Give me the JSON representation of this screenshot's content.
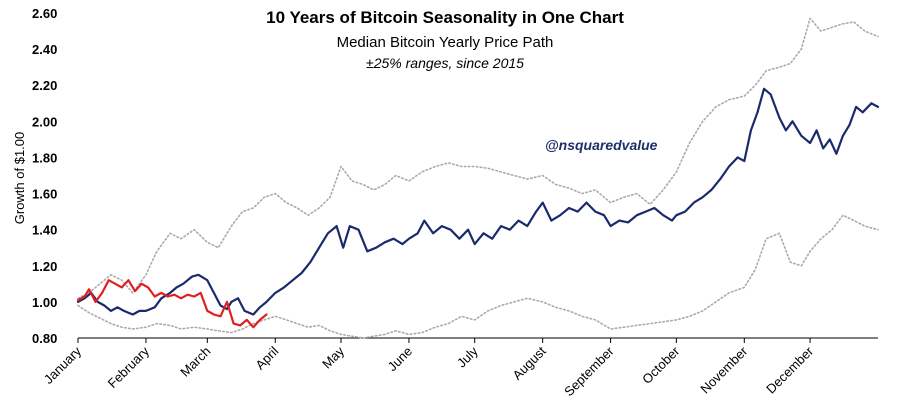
{
  "chart_data": {
    "type": "line",
    "title": "10 Years of Bitcoin Seasonality in One Chart",
    "subtitle": "Median Bitcoin Yearly Price Path",
    "subtitle2": "±25% ranges, since 2015",
    "xlabel": "",
    "ylabel": "Growth of $1.00",
    "annotation": "@nsquaredvalue",
    "xlim": [
      0,
      365
    ],
    "ylim": [
      0.8,
      2.6
    ],
    "x_ticks": [
      {
        "label": "January",
        "x": 0
      },
      {
        "label": "February",
        "x": 31
      },
      {
        "label": "March",
        "x": 59
      },
      {
        "label": "April",
        "x": 90
      },
      {
        "label": "May",
        "x": 120
      },
      {
        "label": "June",
        "x": 151
      },
      {
        "label": "July",
        "x": 181
      },
      {
        "label": "August",
        "x": 212
      },
      {
        "label": "September",
        "x": 243
      },
      {
        "label": "October",
        "x": 273
      },
      {
        "label": "November",
        "x": 304
      },
      {
        "label": "December",
        "x": 334
      }
    ],
    "y_ticks": [
      "0.80",
      "1.00",
      "1.20",
      "1.40",
      "1.60",
      "1.80",
      "2.00",
      "2.20",
      "2.40",
      "2.60"
    ],
    "grid": false,
    "series": [
      {
        "color": "#aaaaaa",
        "style": "dotted",
        "x": [
          0,
          5,
          10,
          15,
          20,
          25,
          31,
          36,
          42,
          47,
          53,
          59,
          64,
          70,
          75,
          80,
          85,
          90,
          95,
          100,
          105,
          110,
          115,
          120,
          125,
          130,
          135,
          140,
          145,
          151,
          157,
          163,
          169,
          175,
          181,
          187,
          193,
          199,
          205,
          212,
          218,
          224,
          230,
          236,
          243,
          249,
          255,
          261,
          267,
          273,
          279,
          285,
          291,
          297,
          304,
          309,
          314,
          320,
          325,
          330,
          334,
          339,
          344,
          349,
          354,
          359,
          365
        ],
        "values": [
          1.02,
          1.05,
          1.1,
          1.15,
          1.12,
          1.05,
          1.15,
          1.28,
          1.38,
          1.35,
          1.4,
          1.33,
          1.3,
          1.42,
          1.5,
          1.52,
          1.58,
          1.6,
          1.55,
          1.52,
          1.48,
          1.52,
          1.58,
          1.75,
          1.67,
          1.65,
          1.62,
          1.65,
          1.7,
          1.67,
          1.72,
          1.75,
          1.77,
          1.75,
          1.75,
          1.74,
          1.72,
          1.7,
          1.68,
          1.7,
          1.65,
          1.63,
          1.6,
          1.62,
          1.55,
          1.58,
          1.6,
          1.54,
          1.62,
          1.72,
          1.88,
          2.0,
          2.08,
          2.12,
          2.14,
          2.2,
          2.28,
          2.3,
          2.32,
          2.4,
          2.57,
          2.5,
          2.52,
          2.54,
          2.55,
          2.5,
          2.47
        ]
      },
      {
        "color": "#aaaaaa",
        "style": "dotted",
        "x": [
          0,
          5,
          10,
          15,
          20,
          25,
          31,
          36,
          42,
          47,
          53,
          59,
          64,
          70,
          75,
          80,
          85,
          90,
          95,
          100,
          105,
          110,
          115,
          120,
          125,
          130,
          135,
          140,
          145,
          151,
          157,
          163,
          169,
          175,
          181,
          187,
          193,
          199,
          205,
          212,
          218,
          224,
          230,
          236,
          243,
          249,
          255,
          261,
          267,
          273,
          279,
          285,
          291,
          297,
          304,
          309,
          314,
          320,
          325,
          330,
          334,
          339,
          344,
          349,
          354,
          359,
          365
        ],
        "values": [
          0.98,
          0.94,
          0.91,
          0.88,
          0.86,
          0.85,
          0.86,
          0.88,
          0.87,
          0.85,
          0.86,
          0.85,
          0.84,
          0.83,
          0.85,
          0.88,
          0.9,
          0.92,
          0.9,
          0.88,
          0.86,
          0.87,
          0.84,
          0.82,
          0.81,
          0.8,
          0.81,
          0.82,
          0.84,
          0.82,
          0.83,
          0.86,
          0.88,
          0.92,
          0.9,
          0.95,
          0.98,
          1.0,
          1.02,
          1.0,
          0.97,
          0.95,
          0.92,
          0.9,
          0.85,
          0.86,
          0.87,
          0.88,
          0.89,
          0.9,
          0.92,
          0.95,
          1.0,
          1.05,
          1.08,
          1.18,
          1.35,
          1.38,
          1.22,
          1.2,
          1.28,
          1.35,
          1.4,
          1.48,
          1.45,
          1.42,
          1.4
        ]
      },
      {
        "color": "#1a2a6c",
        "style": "solid",
        "x": [
          0,
          3,
          6,
          9,
          12,
          15,
          18,
          21,
          25,
          28,
          31,
          35,
          38,
          42,
          45,
          48,
          52,
          55,
          59,
          62,
          65,
          68,
          70,
          73,
          76,
          80,
          83,
          86,
          90,
          94,
          98,
          102,
          106,
          110,
          114,
          118,
          121,
          124,
          128,
          132,
          136,
          140,
          144,
          148,
          151,
          155,
          158,
          162,
          166,
          170,
          174,
          178,
          181,
          185,
          189,
          193,
          197,
          201,
          205,
          209,
          212,
          216,
          220,
          224,
          228,
          232,
          236,
          240,
          243,
          247,
          251,
          255,
          259,
          263,
          267,
          271,
          273,
          277,
          281,
          285,
          289,
          293,
          297,
          301,
          304,
          307,
          310,
          313,
          316,
          320,
          323,
          326,
          330,
          334,
          337,
          340,
          343,
          346,
          349,
          352,
          355,
          358,
          362,
          365
        ],
        "values": [
          1.0,
          1.02,
          1.05,
          1.0,
          0.98,
          0.95,
          0.97,
          0.95,
          0.93,
          0.95,
          0.95,
          0.97,
          1.02,
          1.05,
          1.08,
          1.1,
          1.14,
          1.15,
          1.12,
          1.05,
          0.98,
          0.96,
          1.0,
          1.02,
          0.95,
          0.93,
          0.97,
          1.0,
          1.05,
          1.08,
          1.12,
          1.16,
          1.22,
          1.3,
          1.38,
          1.42,
          1.3,
          1.42,
          1.4,
          1.28,
          1.3,
          1.33,
          1.35,
          1.32,
          1.35,
          1.38,
          1.45,
          1.38,
          1.42,
          1.4,
          1.35,
          1.4,
          1.32,
          1.38,
          1.35,
          1.42,
          1.4,
          1.45,
          1.42,
          1.5,
          1.55,
          1.45,
          1.48,
          1.52,
          1.5,
          1.55,
          1.5,
          1.48,
          1.42,
          1.45,
          1.44,
          1.48,
          1.5,
          1.52,
          1.48,
          1.45,
          1.48,
          1.5,
          1.55,
          1.58,
          1.62,
          1.68,
          1.75,
          1.8,
          1.78,
          1.95,
          2.05,
          2.18,
          2.15,
          2.02,
          1.95,
          2.0,
          1.92,
          1.88,
          1.95,
          1.85,
          1.9,
          1.82,
          1.92,
          1.98,
          2.08,
          2.05,
          2.1,
          2.08
        ]
      },
      {
        "color": "#e02020",
        "style": "solid",
        "x": [
          0,
          3,
          5,
          8,
          11,
          14,
          17,
          20,
          23,
          26,
          29,
          32,
          35,
          38,
          41,
          44,
          47,
          50,
          53,
          56,
          59,
          62,
          65,
          68,
          71,
          74,
          77,
          80,
          83,
          86
        ],
        "values": [
          1.01,
          1.03,
          1.07,
          1.0,
          1.05,
          1.12,
          1.1,
          1.08,
          1.12,
          1.06,
          1.1,
          1.08,
          1.03,
          1.05,
          1.03,
          1.04,
          1.02,
          1.04,
          1.03,
          1.05,
          0.95,
          0.93,
          0.92,
          1.0,
          0.88,
          0.87,
          0.9,
          0.86,
          0.9,
          0.93
        ]
      }
    ]
  }
}
